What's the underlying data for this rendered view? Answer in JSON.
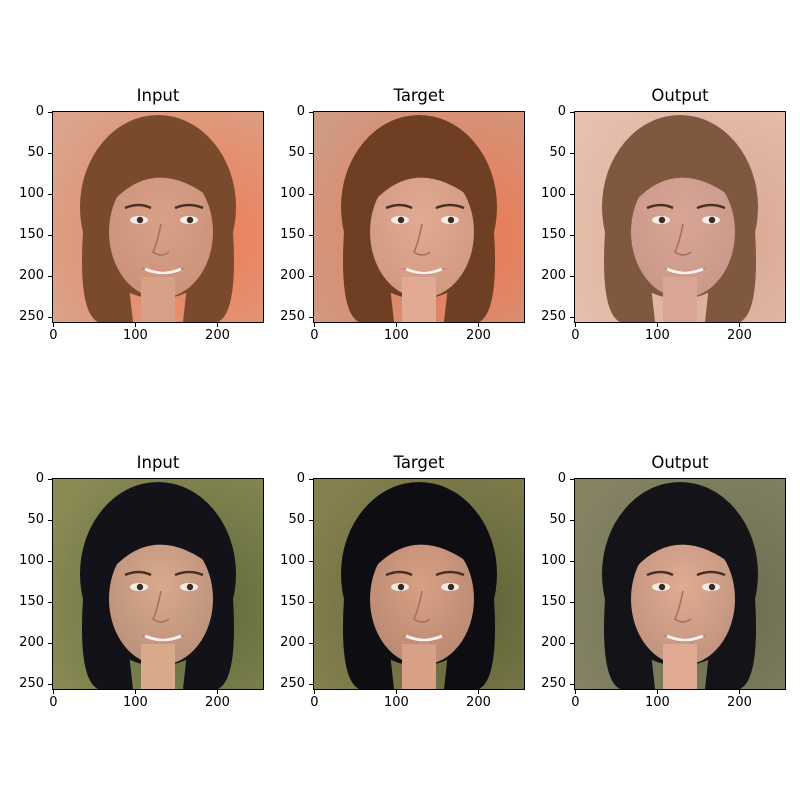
{
  "figure": {
    "panels": [
      {
        "row": 0,
        "title": "Input",
        "kind": "input-photo",
        "palette": {
          "bg": "#d9a48a",
          "bg2": "#f07a55",
          "hair": "#7a4a2c",
          "skin": "#d9a088",
          "mouth": "#b05a5a"
        }
      },
      {
        "row": 0,
        "title": "Target",
        "kind": "target-photo",
        "palette": {
          "bg": "#cf9a82",
          "bg2": "#ee7650",
          "hair": "#6e3f22",
          "skin": "#e2aa92",
          "mouth": "#a85050"
        }
      },
      {
        "row": 0,
        "title": "Output",
        "kind": "output-photo",
        "palette": {
          "bg": "#e7bfae",
          "bg2": "#d8a692",
          "hair": "#80573f",
          "skin": "#d8a596",
          "mouth": "#b56a6a"
        }
      },
      {
        "row": 1,
        "title": "Input",
        "kind": "input-photo",
        "palette": {
          "bg": "#8a8a55",
          "bg2": "#5e6a3a",
          "hair": "#121218",
          "skin": "#d9a98c",
          "mouth": "#c05a5a"
        }
      },
      {
        "row": 1,
        "title": "Target",
        "kind": "target-photo",
        "palette": {
          "bg": "#86804e",
          "bg2": "#5a6236",
          "hair": "#0e0e12",
          "skin": "#d8a084",
          "mouth": "#bb5252"
        }
      },
      {
        "row": 1,
        "title": "Output",
        "kind": "output-photo",
        "palette": {
          "bg": "#858364",
          "bg2": "#6a6c4e",
          "hair": "#141418",
          "skin": "#e0ab92",
          "mouth": "#c05c62"
        }
      }
    ],
    "y_ticks": [
      "0",
      "50",
      "100",
      "150",
      "200",
      "250"
    ],
    "x_ticks": [
      "0",
      "100",
      "200"
    ]
  }
}
